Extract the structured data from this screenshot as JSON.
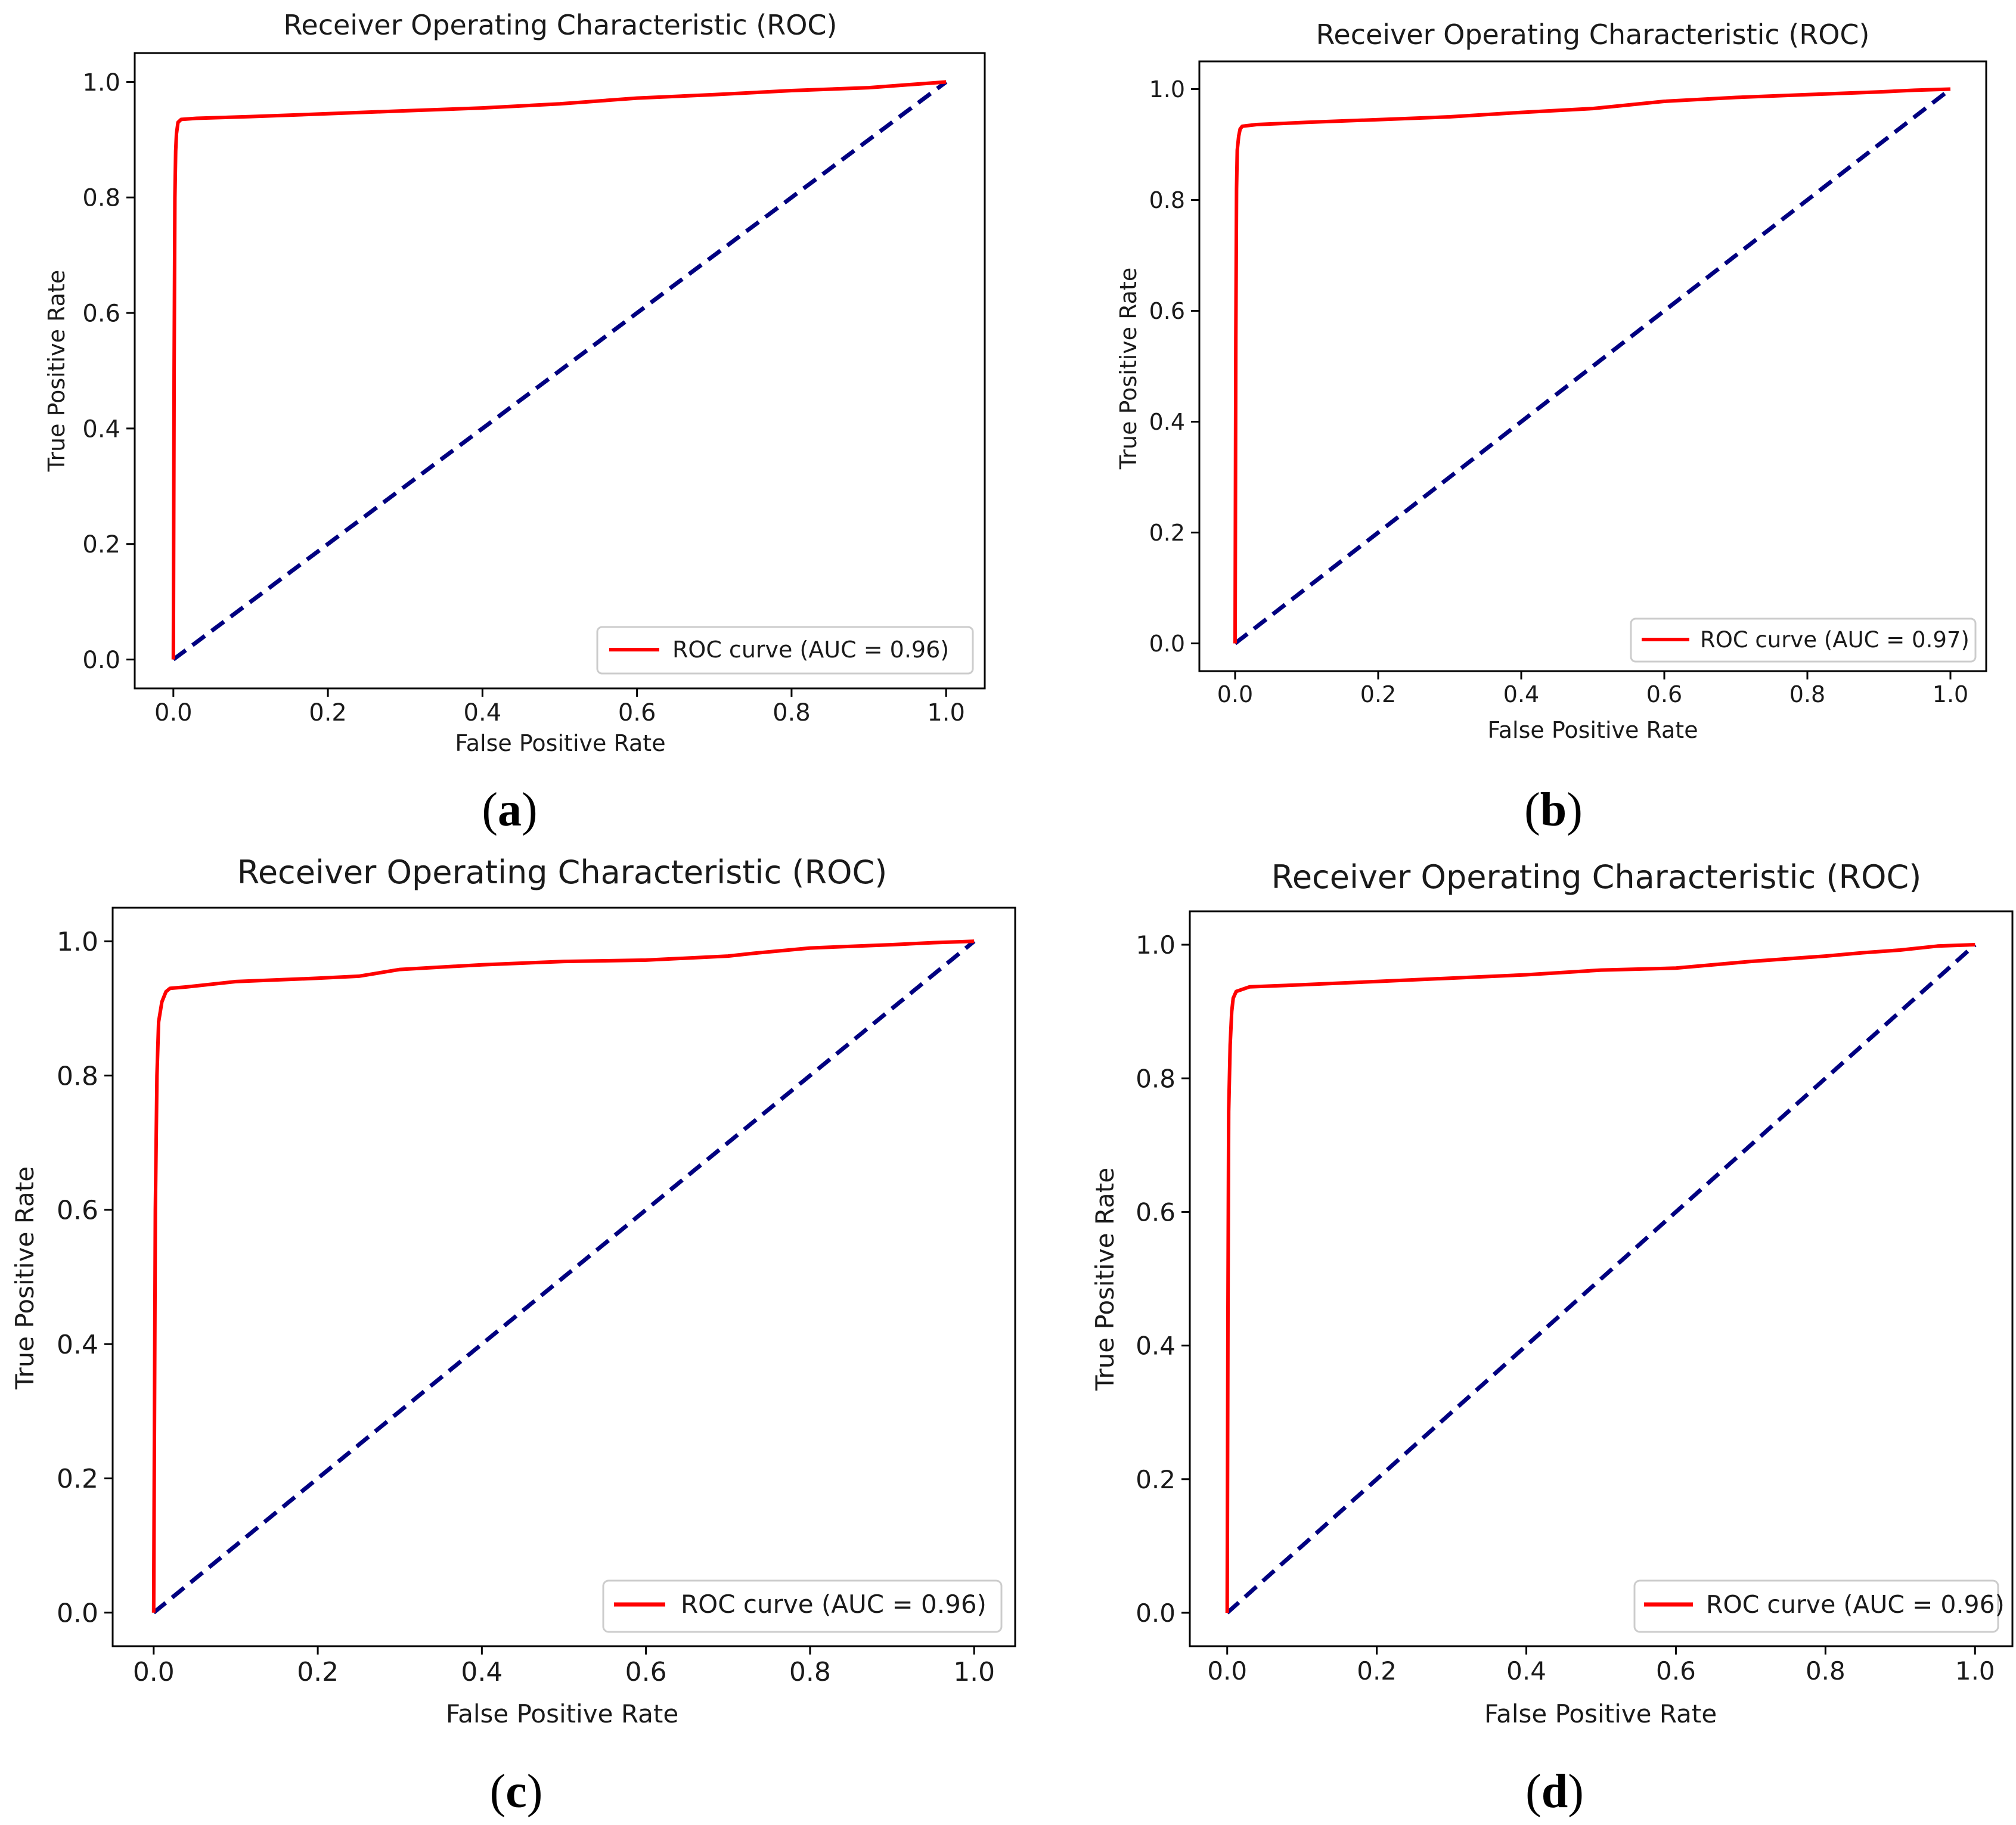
{
  "figure": {
    "captions": [
      {
        "open": "(",
        "letter": "a",
        "close": ")"
      },
      {
        "open": "(",
        "letter": "b",
        "close": ")"
      },
      {
        "open": "(",
        "letter": "c",
        "close": ")"
      },
      {
        "open": "(",
        "letter": "d",
        "close": ")"
      }
    ]
  },
  "colors": {
    "roc": "#ff0000",
    "chance": "#000080",
    "axes": "#000000",
    "background": "#ffffff"
  },
  "chart_data": [
    {
      "type": "line",
      "title": "Receiver Operating Characteristic (ROC)",
      "xlabel": "False Positive Rate",
      "ylabel": "True Positive Rate",
      "xlim": [
        -0.05,
        1.05
      ],
      "ylim": [
        -0.05,
        1.05
      ],
      "xticks": [
        "0.0",
        "0.2",
        "0.4",
        "0.6",
        "0.8",
        "1.0"
      ],
      "yticks": [
        "0.0",
        "0.2",
        "0.4",
        "0.6",
        "0.8",
        "1.0"
      ],
      "legend": {
        "label": "ROC curve (AUC = 0.96)",
        "position": "lower-right"
      },
      "series": [
        {
          "name": "ROC curve (AUC = 0.96)",
          "style": "solid",
          "color": "#ff0000",
          "x": [
            0,
            0.001,
            0.002,
            0.003,
            0.004,
            0.006,
            0.01,
            0.03,
            0.1,
            0.2,
            0.3,
            0.4,
            0.5,
            0.6,
            0.7,
            0.8,
            0.9,
            0.95,
            1.0
          ],
          "y": [
            0,
            0.5,
            0.8,
            0.88,
            0.91,
            0.93,
            0.935,
            0.937,
            0.94,
            0.945,
            0.95,
            0.955,
            0.962,
            0.972,
            0.978,
            0.985,
            0.99,
            0.995,
            1.0
          ]
        },
        {
          "name": "chance",
          "style": "dashed",
          "color": "#000080",
          "x": [
            0,
            1
          ],
          "y": [
            0,
            1
          ]
        }
      ]
    },
    {
      "type": "line",
      "title": "Receiver Operating Characteristic (ROC)",
      "xlabel": "False Positive Rate",
      "ylabel": "True Positive Rate",
      "xlim": [
        -0.05,
        1.05
      ],
      "ylim": [
        -0.05,
        1.05
      ],
      "xticks": [
        "0.0",
        "0.2",
        "0.4",
        "0.6",
        "0.8",
        "1.0"
      ],
      "yticks": [
        "0.0",
        "0.2",
        "0.4",
        "0.6",
        "0.8",
        "1.0"
      ],
      "legend": {
        "label": "ROC curve (AUC = 0.97)",
        "position": "lower-right"
      },
      "series": [
        {
          "name": "ROC curve (AUC = 0.97)",
          "style": "solid",
          "color": "#ff0000",
          "x": [
            0,
            0.001,
            0.002,
            0.003,
            0.005,
            0.007,
            0.01,
            0.03,
            0.1,
            0.2,
            0.3,
            0.4,
            0.5,
            0.6,
            0.7,
            0.8,
            0.9,
            0.95,
            1.0
          ],
          "y": [
            0,
            0.55,
            0.82,
            0.89,
            0.915,
            0.928,
            0.933,
            0.936,
            0.94,
            0.945,
            0.95,
            0.958,
            0.965,
            0.978,
            0.985,
            0.99,
            0.995,
            0.998,
            1.0
          ]
        },
        {
          "name": "chance",
          "style": "dashed",
          "color": "#000080",
          "x": [
            0,
            1
          ],
          "y": [
            0,
            1
          ]
        }
      ]
    },
    {
      "type": "line",
      "title": "Receiver Operating Characteristic (ROC)",
      "xlabel": "False Positive Rate",
      "ylabel": "True Positive Rate",
      "xlim": [
        -0.05,
        1.05
      ],
      "ylim": [
        -0.05,
        1.05
      ],
      "xticks": [
        "0.0",
        "0.2",
        "0.4",
        "0.6",
        "0.8",
        "1.0"
      ],
      "yticks": [
        "0.0",
        "0.2",
        "0.4",
        "0.6",
        "0.8",
        "1.0"
      ],
      "legend": {
        "label": "ROC curve (AUC = 0.96)",
        "position": "lower-right"
      },
      "series": [
        {
          "name": "ROC curve (AUC = 0.96)",
          "style": "solid",
          "color": "#ff0000",
          "x": [
            0,
            0.002,
            0.004,
            0.006,
            0.01,
            0.015,
            0.02,
            0.04,
            0.1,
            0.2,
            0.25,
            0.3,
            0.4,
            0.5,
            0.6,
            0.7,
            0.73,
            0.8,
            0.9,
            0.95,
            1.0
          ],
          "y": [
            0,
            0.6,
            0.8,
            0.88,
            0.91,
            0.925,
            0.93,
            0.932,
            0.94,
            0.945,
            0.948,
            0.958,
            0.965,
            0.97,
            0.972,
            0.978,
            0.982,
            0.99,
            0.995,
            0.998,
            1.0
          ]
        },
        {
          "name": "chance",
          "style": "dashed",
          "color": "#000080",
          "x": [
            0,
            1
          ],
          "y": [
            0,
            1
          ]
        }
      ]
    },
    {
      "type": "line",
      "title": "Receiver Operating Characteristic (ROC)",
      "xlabel": "False Positive Rate",
      "ylabel": "True Positive Rate",
      "xlim": [
        -0.05,
        1.05
      ],
      "ylim": [
        -0.05,
        1.05
      ],
      "xticks": [
        "0.0",
        "0.2",
        "0.4",
        "0.6",
        "0.8",
        "1.0"
      ],
      "yticks": [
        "0.0",
        "0.2",
        "0.4",
        "0.6",
        "0.8",
        "1.0"
      ],
      "legend": {
        "label": "ROC curve (AUC = 0.96)",
        "position": "lower-right"
      },
      "series": [
        {
          "name": "ROC curve (AUC = 0.96)",
          "style": "solid",
          "color": "#ff0000",
          "x": [
            0,
            0.001,
            0.002,
            0.004,
            0.006,
            0.008,
            0.012,
            0.03,
            0.1,
            0.2,
            0.3,
            0.4,
            0.5,
            0.6,
            0.7,
            0.8,
            0.85,
            0.9,
            0.95,
            1.0
          ],
          "y": [
            0,
            0.45,
            0.75,
            0.85,
            0.9,
            0.92,
            0.93,
            0.937,
            0.94,
            0.945,
            0.95,
            0.955,
            0.962,
            0.965,
            0.975,
            0.983,
            0.988,
            0.992,
            0.998,
            1.0
          ]
        },
        {
          "name": "chance",
          "style": "dashed",
          "color": "#000080",
          "x": [
            0,
            1
          ],
          "y": [
            0,
            1
          ]
        }
      ]
    }
  ]
}
